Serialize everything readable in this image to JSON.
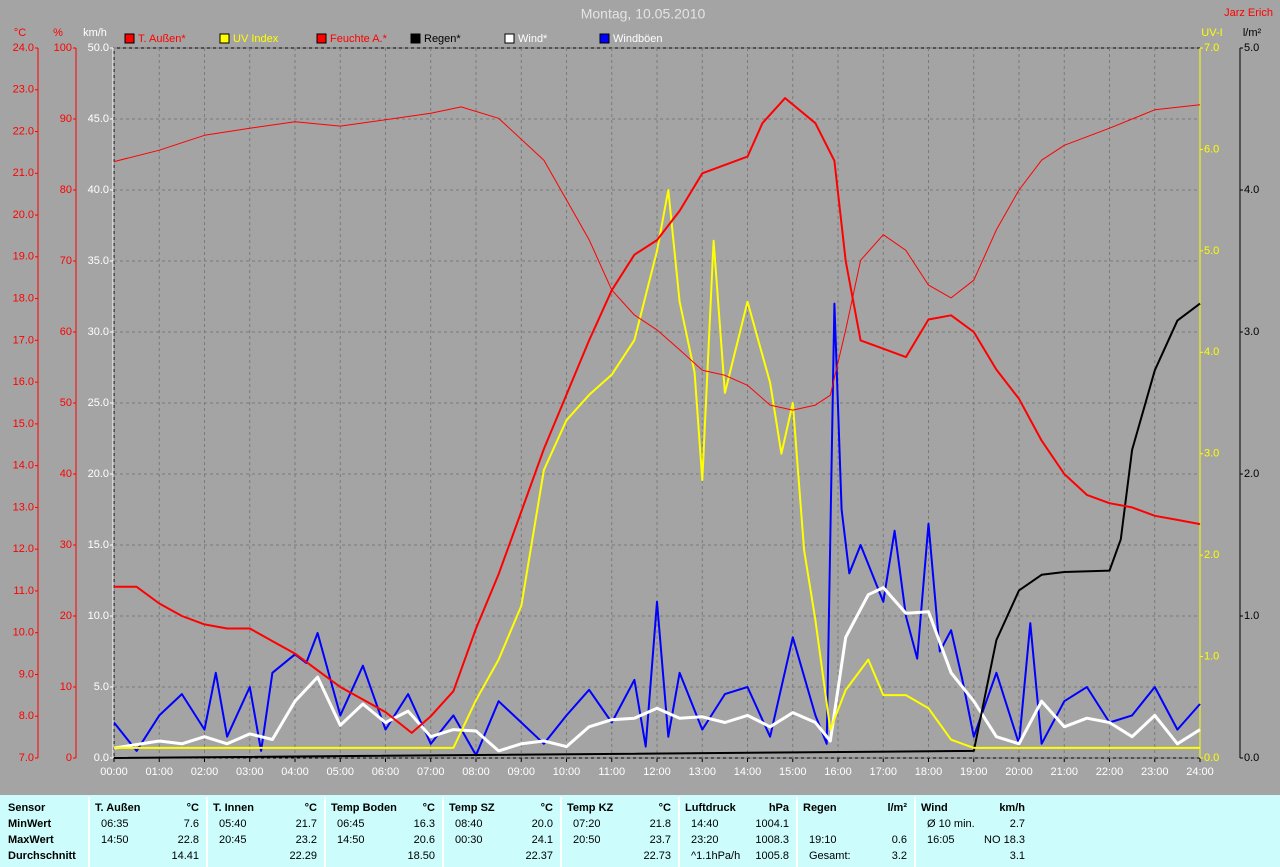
{
  "chart_data": {
    "type": "line",
    "title": "Montag, 10.05.2010",
    "author": "Jarz Erich",
    "xlim": [
      0,
      24
    ],
    "xticks": [
      {
        "value": 0,
        "label": "00:00"
      },
      {
        "value": 1,
        "label": "01:00"
      },
      {
        "value": 2,
        "label": "02:00"
      },
      {
        "value": 3,
        "label": "03:00"
      },
      {
        "value": 4,
        "label": "04:00"
      },
      {
        "value": 5,
        "label": "05:00"
      },
      {
        "value": 6,
        "label": "06:00"
      },
      {
        "value": 7,
        "label": "07:00"
      },
      {
        "value": 8,
        "label": "08:00"
      },
      {
        "value": 9,
        "label": "09:00"
      },
      {
        "value": 10,
        "label": "10:00"
      },
      {
        "value": 11,
        "label": "11:00"
      },
      {
        "value": 12,
        "label": "12:00"
      },
      {
        "value": 13,
        "label": "13:00"
      },
      {
        "value": 14,
        "label": "14:00"
      },
      {
        "value": 15,
        "label": "15:00"
      },
      {
        "value": 16,
        "label": "16:00"
      },
      {
        "value": 17,
        "label": "17:00"
      },
      {
        "value": 18,
        "label": "18:00"
      },
      {
        "value": 19,
        "label": "19:00"
      },
      {
        "value": 20,
        "label": "20:00"
      },
      {
        "value": 21,
        "label": "21:00"
      },
      {
        "value": 22,
        "label": "22:00"
      },
      {
        "value": 23,
        "label": "23:00"
      },
      {
        "value": 24,
        "label": "24:00"
      }
    ],
    "grid": true,
    "y_axes": [
      {
        "label": "°C",
        "color": "#ff0000",
        "side": "left",
        "lim": [
          7,
          24
        ],
        "ticks": [
          {
            "value": 7,
            "label": "7.0"
          },
          {
            "value": 8,
            "label": "8.0"
          },
          {
            "value": 9,
            "label": "9.0"
          },
          {
            "value": 10,
            "label": "10.0"
          },
          {
            "value": 11,
            "label": "11.0"
          },
          {
            "value": 12,
            "label": "12.0"
          },
          {
            "value": 13,
            "label": "13.0"
          },
          {
            "value": 14,
            "label": "14.0"
          },
          {
            "value": 15,
            "label": "15.0"
          },
          {
            "value": 16,
            "label": "16.0"
          },
          {
            "value": 17,
            "label": "17.0"
          },
          {
            "value": 18,
            "label": "18.0"
          },
          {
            "value": 19,
            "label": "19.0"
          },
          {
            "value": 20,
            "label": "20.0"
          },
          {
            "value": 21,
            "label": "21.0"
          },
          {
            "value": 22,
            "label": "22.0"
          },
          {
            "value": 23,
            "label": "23.0"
          },
          {
            "value": 24,
            "label": "24.0"
          }
        ]
      },
      {
        "label": "%",
        "color": "#ff0000",
        "side": "left",
        "lim": [
          0,
          100
        ],
        "ticks": [
          0,
          10,
          20,
          30,
          40,
          50,
          60,
          70,
          80,
          90,
          100
        ]
      },
      {
        "label": "km/h",
        "color": "#ffffff",
        "side": "left",
        "lim": [
          0,
          50
        ],
        "grid": true,
        "ticks": [
          {
            "value": 0,
            "label": "0.0"
          },
          {
            "value": 5,
            "label": "5.0"
          },
          {
            "value": 10,
            "label": "10.0"
          },
          {
            "value": 15,
            "label": "15.0"
          },
          {
            "value": 20,
            "label": "20.0"
          },
          {
            "value": 25,
            "label": "25.0"
          },
          {
            "value": 30,
            "label": "30.0"
          },
          {
            "value": 35,
            "label": "35.0"
          },
          {
            "value": 40,
            "label": "40.0"
          },
          {
            "value": 45,
            "label": "45.0"
          },
          {
            "value": 50,
            "label": "50.0"
          }
        ]
      },
      {
        "label": "UV-I",
        "color": "#ffff00",
        "side": "right",
        "lim": [
          0,
          7
        ],
        "ticks": [
          {
            "value": 0,
            "label": "0.0"
          },
          {
            "value": 1,
            "label": "1.0"
          },
          {
            "value": 2,
            "label": "2.0"
          },
          {
            "value": 3,
            "label": "3.0"
          },
          {
            "value": 4,
            "label": "4.0"
          },
          {
            "value": 5,
            "label": "5.0"
          },
          {
            "value": 6,
            "label": "6.0"
          },
          {
            "value": 7,
            "label": "7.0"
          }
        ]
      },
      {
        "label": "l/m²",
        "color": "#000000",
        "side": "right",
        "lim": [
          0,
          5
        ],
        "ticks": [
          {
            "value": 0,
            "label": "0.0"
          },
          {
            "value": 1,
            "label": "1.0"
          },
          {
            "value": 2,
            "label": "2.0"
          },
          {
            "value": 3,
            "label": "3.0"
          },
          {
            "value": 4,
            "label": "4.0"
          },
          {
            "value": 5,
            "label": "5.0"
          }
        ]
      }
    ],
    "series": [
      {
        "name": "T. Außen*",
        "color": "#ff0000",
        "legend_color": "#ff0000",
        "axis": 0,
        "line_width": 2,
        "x": [
          0,
          0.5,
          1,
          1.5,
          2,
          2.5,
          3,
          3.5,
          4,
          4.5,
          5,
          5.5,
          6,
          6.58,
          7,
          7.5,
          8,
          8.5,
          9,
          9.5,
          10,
          10.5,
          11,
          11.5,
          12,
          12.5,
          13,
          13.5,
          14,
          14.33,
          14.83,
          15.5,
          15.92,
          16.17,
          16.5,
          17,
          17.5,
          18,
          18.5,
          19,
          19.5,
          20,
          20.5,
          21,
          21.5,
          22,
          22.5,
          23,
          23.5,
          24
        ],
        "values": [
          11.1,
          11.1,
          10.7,
          10.4,
          10.2,
          10.1,
          10.1,
          9.8,
          9.5,
          9.1,
          8.7,
          8.4,
          8.1,
          7.6,
          8.0,
          8.6,
          10.1,
          11.4,
          12.9,
          14.4,
          15.7,
          17.0,
          18.2,
          19.05,
          19.4,
          20.1,
          21.0,
          21.2,
          21.4,
          22.2,
          22.8,
          22.2,
          21.3,
          18.9,
          17.0,
          16.8,
          16.6,
          17.5,
          17.6,
          17.2,
          16.3,
          15.6,
          14.6,
          13.8,
          13.3,
          13.1,
          13.0,
          12.8,
          12.7,
          12.6
        ]
      },
      {
        "name": "UV Index",
        "color": "#ffff00",
        "legend_color": "#ffff00",
        "axis": 3,
        "line_width": 2,
        "x": [
          0,
          7.5,
          8,
          8.5,
          9,
          9.5,
          10,
          10.5,
          11,
          11.5,
          12,
          12.25,
          12.5,
          12.83,
          13,
          13.25,
          13.5,
          14,
          14.5,
          14.75,
          15,
          15.25,
          15.5,
          15.83,
          16.17,
          16.67,
          17,
          17.5,
          18,
          18.5,
          19,
          24
        ],
        "values": [
          0.1,
          0.1,
          0.57,
          0.97,
          1.5,
          2.84,
          3.33,
          3.58,
          3.78,
          4.12,
          5.0,
          5.6,
          4.5,
          3.8,
          2.74,
          5.1,
          3.6,
          4.5,
          3.7,
          3.0,
          3.5,
          2.05,
          1.36,
          0.28,
          0.67,
          0.97,
          0.62,
          0.62,
          0.49,
          0.18,
          0.1,
          0.1
        ]
      },
      {
        "name": "Feuchte A.*",
        "color": "#ff0000",
        "legend_color": "#ff0000",
        "axis": 1,
        "line_width": 1,
        "x": [
          0,
          1,
          2,
          3,
          4,
          5,
          6,
          7,
          7.67,
          8.5,
          9.5,
          10,
          10.5,
          11,
          11.5,
          12,
          12.5,
          13,
          13.5,
          14,
          14.5,
          15,
          15.5,
          15.83,
          16.17,
          16.5,
          17,
          17.5,
          18,
          18.5,
          19,
          19.5,
          20,
          20.5,
          21,
          22,
          23,
          24
        ],
        "values": [
          84,
          85.6,
          87.7,
          88.7,
          89.6,
          89,
          89.9,
          90.8,
          91.7,
          90.1,
          84.2,
          78.6,
          73,
          65.9,
          62.4,
          60.3,
          57.5,
          54.6,
          53.9,
          52.5,
          49.7,
          49,
          49.7,
          51.1,
          60.3,
          70.1,
          73.7,
          71.5,
          66.6,
          64.8,
          67.3,
          74.4,
          80,
          84.2,
          86.3,
          88.7,
          91.3,
          92
        ]
      },
      {
        "name": "Regen*",
        "color": "#000000",
        "legend_color": "#000000",
        "axis": 4,
        "line_width": 2,
        "x": [
          0,
          19,
          19.5,
          20,
          20.5,
          21,
          22,
          22.25,
          22.5,
          23,
          23.5,
          24
        ],
        "values": [
          0,
          0.05,
          0.83,
          1.18,
          1.29,
          1.31,
          1.32,
          1.54,
          2.17,
          2.73,
          3.08,
          3.2
        ]
      },
      {
        "name": "Wind*",
        "color": "#ffffff",
        "legend_color": "#ffffff",
        "axis": 2,
        "line_width": 3,
        "x": [
          0,
          1,
          1.5,
          2,
          2.5,
          3,
          3.5,
          4,
          4.5,
          5,
          5.5,
          6,
          6.5,
          7,
          7.5,
          8,
          8.5,
          9,
          9.5,
          10,
          10.5,
          11,
          11.5,
          12,
          12.5,
          13,
          13.5,
          14,
          14.5,
          15,
          15.5,
          15.83,
          16.17,
          16.67,
          17,
          17.5,
          18,
          18.5,
          19,
          19.5,
          20,
          20.5,
          21,
          21.5,
          22,
          22.5,
          23,
          23.5,
          24
        ],
        "values": [
          0.7,
          1.2,
          1,
          1.5,
          1,
          1.7,
          1.3,
          4,
          5.7,
          2.3,
          3.8,
          2.5,
          3.3,
          1.5,
          2,
          1.9,
          0.5,
          1,
          1.2,
          0.8,
          2.2,
          2.7,
          2.8,
          3.5,
          2.8,
          2.9,
          2.5,
          3,
          2.2,
          3.2,
          2.5,
          1.2,
          8.5,
          11.5,
          12,
          10.2,
          10.3,
          6,
          4,
          1.5,
          1,
          4,
          2.2,
          2.8,
          2.5,
          1.5,
          3,
          1,
          2
        ]
      },
      {
        "name": "Windböen",
        "color": "#0000ff",
        "legend_color": "#ffffff",
        "axis": 2,
        "line_width": 2,
        "x": [
          0,
          0.5,
          1,
          1.5,
          2,
          2.25,
          2.5,
          3,
          3.25,
          3.5,
          4,
          4.25,
          4.5,
          5,
          5.5,
          6,
          6.5,
          7,
          7.5,
          8,
          8.5,
          9,
          9.5,
          10,
          10.5,
          11,
          11.5,
          11.75,
          12,
          12.25,
          12.5,
          13,
          13.5,
          14,
          14.5,
          15,
          15.5,
          15.75,
          15.92,
          16.08,
          16.25,
          16.5,
          17,
          17.25,
          17.5,
          17.75,
          18,
          18.25,
          18.5,
          18.75,
          19,
          19.5,
          20,
          20.25,
          20.5,
          21,
          21.5,
          22,
          22.5,
          23,
          23.5,
          24
        ],
        "values": [
          2.5,
          0.5,
          3,
          4.5,
          2,
          6,
          1.5,
          5,
          0.5,
          6,
          7.3,
          6.7,
          8.8,
          3,
          6.5,
          2,
          4.5,
          1,
          3,
          0.2,
          4,
          2.5,
          1,
          3,
          4.8,
          2.5,
          5.5,
          0.8,
          11,
          1.5,
          6,
          2,
          4.5,
          5,
          1.5,
          8.5,
          3,
          1,
          32,
          17.5,
          13,
          15,
          11,
          16,
          10,
          7,
          16.5,
          7.5,
          9,
          5.5,
          1.5,
          6,
          1,
          9.5,
          1,
          4,
          5,
          2.5,
          3,
          5,
          2,
          3.8
        ]
      }
    ],
    "draw_order": [
      5,
      4,
      3,
      1,
      2,
      0
    ]
  },
  "stats": {
    "header": "Sensor",
    "row_labels": [
      "MinWert",
      "MaxWert",
      "Durchschnitt"
    ],
    "columns": [
      {
        "name": "T. Außen",
        "unit": "°C",
        "cells": [
          [
            "06:35",
            "7.6"
          ],
          [
            "14:50",
            "22.8"
          ],
          [
            null,
            "14.41"
          ]
        ]
      },
      {
        "name": "T. Innen",
        "unit": "°C",
        "cells": [
          [
            "05:40",
            "21.7"
          ],
          [
            "20:45",
            "23.2"
          ],
          [
            null,
            "22.29"
          ]
        ]
      },
      {
        "name": "Temp Boden",
        "unit": "°C",
        "cells": [
          [
            "06:45",
            "16.3"
          ],
          [
            "14:50",
            "20.6"
          ],
          [
            null,
            "18.50"
          ]
        ]
      },
      {
        "name": "Temp SZ",
        "unit": "°C",
        "cells": [
          [
            "08:40",
            "20.0"
          ],
          [
            "00:30",
            "24.1"
          ],
          [
            null,
            "22.37"
          ]
        ]
      },
      {
        "name": "Temp KZ",
        "unit": "°C",
        "cells": [
          [
            "07:20",
            "21.8"
          ],
          [
            "20:50",
            "23.7"
          ],
          [
            null,
            "22.73"
          ]
        ]
      },
      {
        "name": "Luftdruck",
        "unit": "hPa",
        "cells": [
          [
            "14:40",
            "1004.1"
          ],
          [
            "23:20",
            "1008.3"
          ],
          [
            "^1.1hPa/h",
            "1005.8"
          ]
        ]
      },
      {
        "name": "Regen",
        "unit": "l/m²",
        "cells": [
          [
            null,
            null
          ],
          [
            "19:10",
            "0.6"
          ],
          [
            "Gesamt:",
            "3.2"
          ]
        ]
      },
      {
        "name": "Wind",
        "unit": "km/h",
        "cells": [
          [
            "Ø 10 min.",
            "2.7"
          ],
          [
            "16:05",
            "NO 18.3"
          ],
          [
            null,
            "3.1"
          ]
        ]
      }
    ]
  }
}
